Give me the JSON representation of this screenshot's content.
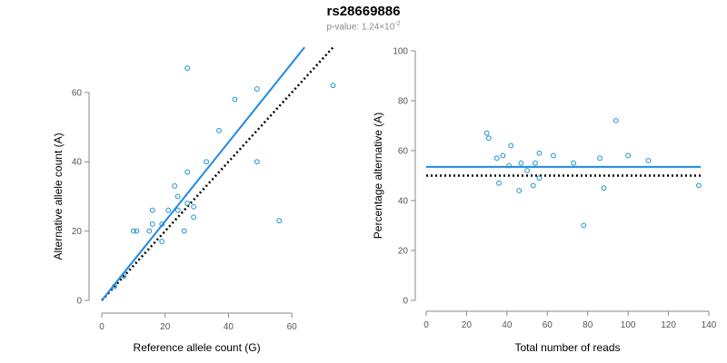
{
  "title": "rs28669886",
  "subtitle": {
    "prefix": "p-value: 1.24×10",
    "exponent": "-2"
  },
  "colors": {
    "points": "#1f8fce",
    "fit_line": "#1e88e5",
    "reference_line": "#000000",
    "axis": "#888888"
  },
  "chart_data": [
    {
      "type": "scatter",
      "xlabel": "Reference allele count (G)",
      "ylabel": "Alternative allele count (A)",
      "xlim": [
        0,
        72
      ],
      "ylim": [
        0,
        72
      ],
      "xticks": [
        0,
        20,
        40,
        60
      ],
      "yticks": [
        0,
        20,
        40,
        60
      ],
      "grid": false,
      "points": [
        [
          4,
          4
        ],
        [
          7,
          7
        ],
        [
          10,
          20
        ],
        [
          11,
          20
        ],
        [
          15,
          20
        ],
        [
          16,
          22
        ],
        [
          16,
          26
        ],
        [
          19,
          17
        ],
        [
          19,
          22
        ],
        [
          21,
          26
        ],
        [
          23,
          33
        ],
        [
          24,
          26
        ],
        [
          24,
          30
        ],
        [
          26,
          20
        ],
        [
          27,
          28
        ],
        [
          27,
          37
        ],
        [
          27,
          67
        ],
        [
          29,
          24
        ],
        [
          29,
          27
        ],
        [
          33,
          40
        ],
        [
          37,
          49
        ],
        [
          42,
          58
        ],
        [
          49,
          40
        ],
        [
          49,
          61
        ],
        [
          56,
          23
        ],
        [
          73,
          62
        ]
      ],
      "fit_line": {
        "x": [
          0,
          64
        ],
        "y": [
          0,
          73
        ]
      },
      "reference_line": {
        "x": [
          0,
          73
        ],
        "y": [
          0,
          73
        ]
      }
    },
    {
      "type": "scatter",
      "xlabel": "Total number of reads",
      "ylabel": "Percentage alternative (A)",
      "xlim": [
        0,
        140
      ],
      "ylim": [
        0,
        100
      ],
      "xticks": [
        0,
        20,
        40,
        60,
        80,
        100,
        120,
        140
      ],
      "yticks": [
        0,
        20,
        40,
        60,
        80,
        100
      ],
      "grid": false,
      "points": [
        [
          30,
          67
        ],
        [
          31,
          65
        ],
        [
          35,
          57
        ],
        [
          36,
          47
        ],
        [
          38,
          58
        ],
        [
          41,
          54
        ],
        [
          42,
          62
        ],
        [
          46,
          44
        ],
        [
          47,
          55
        ],
        [
          50,
          52
        ],
        [
          53,
          46
        ],
        [
          54,
          55
        ],
        [
          56,
          49
        ],
        [
          56,
          59
        ],
        [
          63,
          58
        ],
        [
          73,
          55
        ],
        [
          78,
          30
        ],
        [
          86,
          57
        ],
        [
          88,
          45
        ],
        [
          94,
          72
        ],
        [
          100,
          58
        ],
        [
          110,
          56
        ],
        [
          135,
          46
        ]
      ],
      "fit_line": {
        "x": [
          0,
          136
        ],
        "y": [
          53.5,
          53.5
        ]
      },
      "reference_line": {
        "x": [
          0,
          136
        ],
        "y": [
          50,
          50
        ]
      }
    }
  ]
}
